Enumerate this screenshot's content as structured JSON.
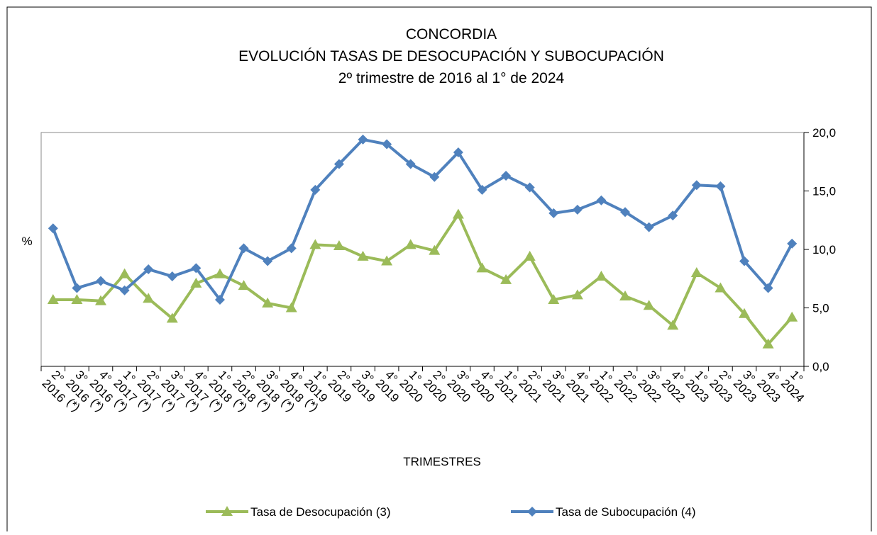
{
  "chart_data": {
    "type": "line",
    "title": "CONCORDIA",
    "subtitle": [
      "EVOLUCIÓN TASAS DE DESOCUPACIÓN Y SUBOCUPACIÓN",
      "2º trimestre de 2016 al 1° de 2024"
    ],
    "ylabel": "%",
    "xlabel": "TRIMESTRES",
    "categories": [
      "2° 2016",
      "3° 2016 (*)",
      "4° 2016 (*)",
      "1° 2017 (*)",
      "2° 2017 (*)",
      "3° 2017 (*)",
      "4° 2017 (*)",
      "1° 2018 (*)",
      "2° 2018 (*)",
      "3° 2018 (*)",
      "4° 2018 (*)",
      "1° 2019 (*)",
      "2° 2019",
      "3° 2019",
      "4° 2019",
      "1° 2020",
      "2° 2020",
      "3° 2020",
      "4° 2020",
      "1° 2021",
      "2° 2021",
      "3° 2021",
      "4° 2021",
      "1° 2022",
      "2° 2022",
      "3° 2022",
      "4° 2022",
      "1° 2023",
      "2° 2023",
      "3° 2023",
      "4° 2023",
      "1° 2024"
    ],
    "series": [
      {
        "name": "Tasa de Desocupación (3)",
        "color": "#9bbb59",
        "marker": "triangle",
        "values": [
          5.7,
          5.7,
          5.6,
          7.9,
          5.8,
          4.1,
          7.1,
          7.9,
          6.9,
          5.4,
          5.0,
          10.4,
          10.3,
          9.4,
          9.0,
          10.4,
          9.9,
          13.0,
          8.4,
          7.4,
          9.4,
          5.7,
          6.1,
          7.7,
          6.0,
          5.2,
          3.5,
          8.0,
          6.7,
          4.5,
          1.9,
          4.2
        ]
      },
      {
        "name": "Tasa de Subocupación (4)",
        "color": "#4f81bd",
        "marker": "diamond",
        "values": [
          11.8,
          6.7,
          7.3,
          6.5,
          8.3,
          7.7,
          8.4,
          5.7,
          10.1,
          9.0,
          10.1,
          15.1,
          17.3,
          19.4,
          19.0,
          17.3,
          16.2,
          18.3,
          15.1,
          16.3,
          15.3,
          13.1,
          13.4,
          14.2,
          13.2,
          11.9,
          12.9,
          15.5,
          15.4,
          9.0,
          6.7,
          10.5
        ]
      }
    ],
    "ylim": [
      0,
      20
    ],
    "yticks": [
      {
        "value": 0,
        "label": "0,0"
      },
      {
        "value": 5,
        "label": "5,0"
      },
      {
        "value": 10,
        "label": "10,0"
      },
      {
        "value": 15,
        "label": "15,0"
      },
      {
        "value": 20,
        "label": "20,0"
      }
    ],
    "yaxis_side": "right",
    "legend": "bottom"
  }
}
